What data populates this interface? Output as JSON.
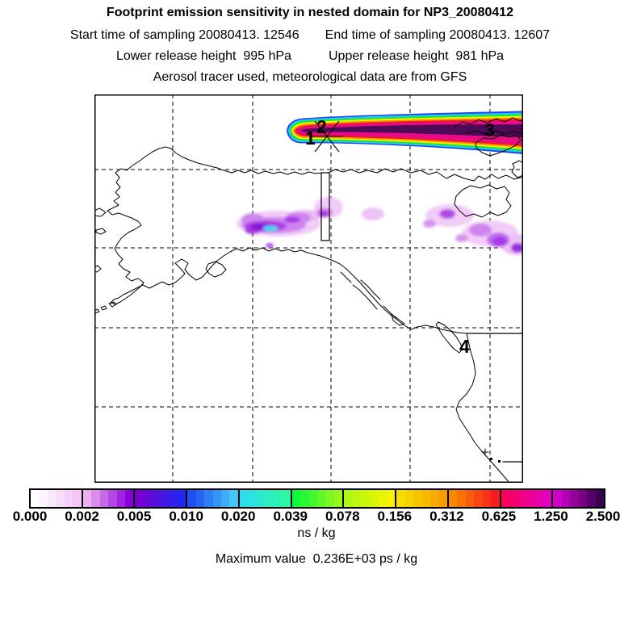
{
  "header": {
    "title": "Footprint emission sensitivity in nested domain for NP3_20080412",
    "start_time": "Start time of sampling 20080413. 12546",
    "end_time": "End time of sampling 20080413. 12607",
    "lower_release": "Lower release height  995 hPa",
    "upper_release": "Upper release height  981 hPa",
    "tracer_info": "Aerosol tracer used, meteorological data are from GFS"
  },
  "map": {
    "markers": {
      "m1": "1",
      "m2": "2",
      "m3": "3",
      "m4": "4"
    },
    "release_site_symbol": "asterisk-star"
  },
  "colorbar": {
    "units": "ns / kg",
    "ticks": [
      "0.000",
      "0.002",
      "0.005",
      "0.010",
      "0.020",
      "0.039",
      "0.078",
      "0.156",
      "0.312",
      "0.625",
      "1.250",
      "2.500"
    ],
    "segments": [
      {
        "from": "#ffffff",
        "to": "#f3c6f6"
      },
      {
        "from": "#eeaef2",
        "to": "#8b00dd"
      },
      {
        "from": "#7a00d2",
        "to": "#2028f0"
      },
      {
        "from": "#1e4ef4",
        "to": "#46c5f8"
      },
      {
        "from": "#2adef2",
        "to": "#2cf8a4"
      },
      {
        "from": "#0ef83c",
        "to": "#96f81a"
      },
      {
        "from": "#aef814",
        "to": "#f8f400"
      },
      {
        "from": "#f8de00",
        "to": "#f89e00"
      },
      {
        "from": "#f88800",
        "to": "#f81c20"
      },
      {
        "from": "#f8005c",
        "to": "#e400bc"
      },
      {
        "from": "#d200cc",
        "to": "#3a0052"
      }
    ]
  },
  "footer": {
    "max_value": "Maximum value  0.236E+03 ps / kg"
  },
  "chart_data": {
    "type": "heatmap",
    "title": "Footprint emission sensitivity in nested domain for NP3_20080412",
    "subtitle_lines": [
      "Start time of sampling 20080413. 12546    End time of sampling 20080413. 12607",
      "Lower release height  995 hPa      Upper release height  981 hPa",
      "Aerosol tracer used, meteorological data are from GFS"
    ],
    "colorbar_levels": [
      0.0,
      0.002,
      0.005,
      0.01,
      0.02,
      0.039,
      0.078,
      0.156,
      0.312,
      0.625,
      1.25,
      2.5
    ],
    "units": "ns / kg",
    "max_value_text": "Maximum value  0.236E+03 ps / kg",
    "legend_position": "bottom",
    "grid": true,
    "map_region": "Alaska / northwestern North America with Arctic coast",
    "features": [
      {
        "name": "release-site",
        "symbol": "star",
        "nearby_labels": [
          "1",
          "2"
        ]
      },
      {
        "name": "site-3",
        "label": "3"
      },
      {
        "name": "site-4",
        "label": "4"
      },
      {
        "name": "high-sensitivity-plume",
        "description": "east-west band along Arctic coast reaching max scale values > 2.5"
      },
      {
        "name": "diffuse-sensitivity-field",
        "description": "scattered low values 0.002-0.04 over interior Alaska / Yukon"
      },
      {
        "name": "nested-domain-outline",
        "description": "small rectangle near release site"
      }
    ]
  }
}
